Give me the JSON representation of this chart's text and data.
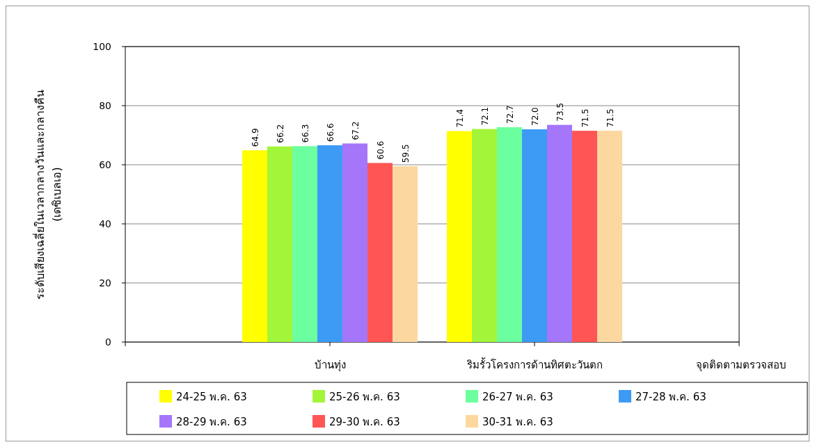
{
  "chart_data": {
    "type": "bar",
    "ylabel": "ระดับเสียงเฉลี่ยในเวลากลางวันและกลางคืน\n(เดซิเบลเอ)",
    "xlabel": "จุดติดตามตรวจสอบ",
    "categories": [
      null,
      "บ้านทุ่ง",
      "ริมรั้วโครงการด้านทิศตะวันตก",
      null
    ],
    "series": [
      {
        "name": "24-25 พ.ค. 63",
        "color": "#ffff00",
        "values": [
          null,
          64.9,
          71.4,
          null
        ],
        "value_labels": [
          null,
          "64.9",
          "71.4",
          null
        ]
      },
      {
        "name": "25-26 พ.ค. 63",
        "color": "#a3f53a",
        "values": [
          null,
          66.2,
          72.1,
          null
        ],
        "value_labels": [
          null,
          "66.2",
          "72.1",
          null
        ]
      },
      {
        "name": "26-27 พ.ค. 63",
        "color": "#6cff9f",
        "values": [
          null,
          66.3,
          72.7,
          null
        ],
        "value_labels": [
          null,
          "66.3",
          "72.7",
          null
        ]
      },
      {
        "name": "27-28 พ.ค. 63",
        "color": "#3d9bf5",
        "values": [
          null,
          66.6,
          72.0,
          null
        ],
        "value_labels": [
          null,
          "66.6",
          "72.0",
          null
        ]
      },
      {
        "name": "28-29 พ.ค. 63",
        "color": "#a575fa",
        "values": [
          null,
          67.2,
          73.5,
          null
        ],
        "value_labels": [
          null,
          "67.2",
          "73.5",
          null
        ]
      },
      {
        "name": "29-30 พ.ค. 63",
        "color": "#ff5555",
        "values": [
          null,
          60.6,
          71.5,
          null
        ],
        "value_labels": [
          null,
          "60.6",
          "71.5",
          null
        ]
      },
      {
        "name": "30-31 พ.ค. 63",
        "color": "#fdd7a0",
        "values": [
          null,
          59.5,
          71.5,
          null
        ],
        "value_labels": [
          null,
          "59.5",
          "71.5",
          null
        ]
      }
    ],
    "ylim": [
      0,
      100
    ],
    "yticks": [
      0,
      20,
      40,
      60,
      80,
      100
    ],
    "grid": "y",
    "legend": "bottom"
  }
}
